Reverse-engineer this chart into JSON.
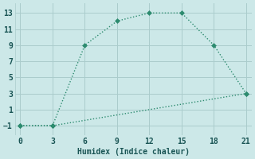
{
  "line1_x": [
    0,
    3,
    6,
    9,
    12,
    15,
    18,
    21
  ],
  "line1_y": [
    -1,
    -1,
    9,
    12,
    13,
    13,
    9,
    3
  ],
  "line2_x": [
    0,
    3,
    21
  ],
  "line2_y": [
    -1,
    -1,
    3
  ],
  "line_color": "#2d8b6f",
  "bg_color": "#cce8e8",
  "grid_color": "#aacccc",
  "xlabel": "Humidex (Indice chaleur)",
  "xlim": [
    -0.5,
    21.5
  ],
  "ylim": [
    -2.2,
    14.2
  ],
  "xticks": [
    0,
    3,
    6,
    9,
    12,
    15,
    18,
    21
  ],
  "yticks": [
    -1,
    1,
    3,
    5,
    7,
    9,
    11,
    13
  ],
  "markersize": 3.5,
  "linewidth": 1.0
}
